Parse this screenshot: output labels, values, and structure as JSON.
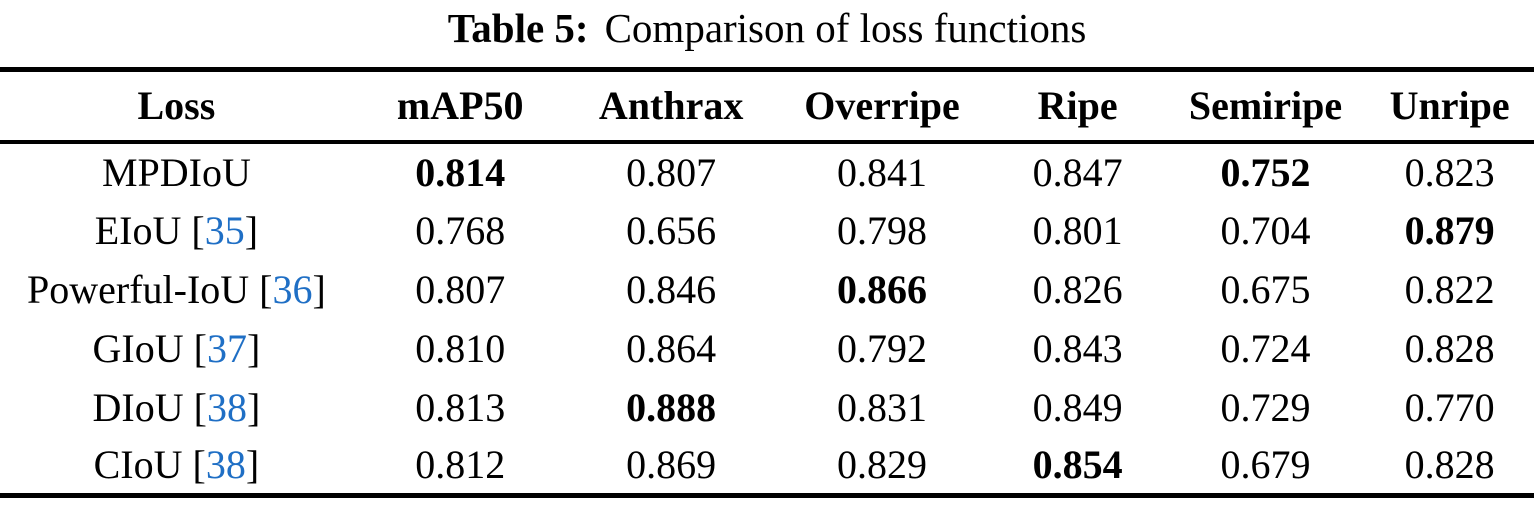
{
  "caption": {
    "label": "Table 5:",
    "text": "Comparison of loss functions"
  },
  "colors": {
    "citation_link": "#1F6FC5",
    "text": "#000000",
    "background": "#ffffff",
    "rule": "#000000"
  },
  "table": {
    "headers": [
      "Loss",
      "mAP50",
      "Anthrax",
      "Overripe",
      "Ripe",
      "Semiripe",
      "Unripe"
    ],
    "rows": [
      {
        "loss": "MPDIoU",
        "cite": "",
        "values": [
          "0.814",
          "0.807",
          "0.841",
          "0.847",
          "0.752",
          "0.823"
        ],
        "bold": [
          0,
          4
        ]
      },
      {
        "loss": "EIoU",
        "cite": "35",
        "values": [
          "0.768",
          "0.656",
          "0.798",
          "0.801",
          "0.704",
          "0.879"
        ],
        "bold": [
          5
        ]
      },
      {
        "loss": "Powerful-IoU",
        "cite": "36",
        "values": [
          "0.807",
          "0.846",
          "0.866",
          "0.826",
          "0.675",
          "0.822"
        ],
        "bold": [
          2
        ]
      },
      {
        "loss": "GIoU",
        "cite": "37",
        "values": [
          "0.810",
          "0.864",
          "0.792",
          "0.843",
          "0.724",
          "0.828"
        ],
        "bold": []
      },
      {
        "loss": "DIoU",
        "cite": "38",
        "values": [
          "0.813",
          "0.888",
          "0.831",
          "0.849",
          "0.729",
          "0.770"
        ],
        "bold": [
          1
        ]
      },
      {
        "loss": "CIoU",
        "cite": "38",
        "values": [
          "0.812",
          "0.869",
          "0.829",
          "0.854",
          "0.679",
          "0.828"
        ],
        "bold": [
          3
        ]
      }
    ]
  }
}
